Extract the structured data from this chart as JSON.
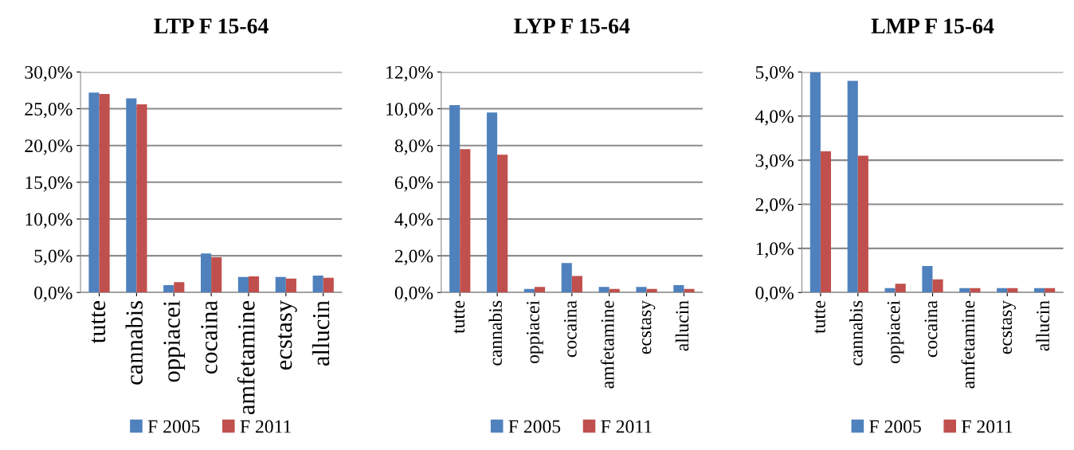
{
  "chart_data": [
    {
      "type": "bar",
      "title": "LTP F 15-64",
      "categories": [
        "tutte",
        "cannabis",
        "oppiacei",
        "cocaina",
        "amfetamine",
        "ecstasy",
        "allucin"
      ],
      "series": [
        {
          "name": "F 2005",
          "color": "#4f81bd",
          "values": [
            27.2,
            26.4,
            1.0,
            5.3,
            2.1,
            2.1,
            2.3
          ]
        },
        {
          "name": "F 2011",
          "color": "#c0504d",
          "values": [
            27.0,
            25.6,
            1.4,
            4.8,
            2.2,
            1.9,
            2.0
          ]
        }
      ],
      "ylim": [
        0,
        30
      ],
      "yticks": [
        {
          "value": 0,
          "label": "0,0%"
        },
        {
          "value": 5,
          "label": "5,0%"
        },
        {
          "value": 10,
          "label": "10,0%"
        },
        {
          "value": 15,
          "label": "15,0%"
        },
        {
          "value": 20,
          "label": "20,0%"
        },
        {
          "value": 25,
          "label": "25,0%"
        },
        {
          "value": 30,
          "label": "30,0%"
        }
      ],
      "grid": "y",
      "legend": "bottom"
    },
    {
      "type": "bar",
      "title": "LYP F 15-64",
      "categories": [
        "tutte",
        "cannabis",
        "oppiacei",
        "cocaina",
        "amfetamine",
        "ecstasy",
        "allucin"
      ],
      "series": [
        {
          "name": "F 2005",
          "color": "#4f81bd",
          "values": [
            10.2,
            9.8,
            0.2,
            1.6,
            0.3,
            0.3,
            0.4
          ]
        },
        {
          "name": "F 2011",
          "color": "#c0504d",
          "values": [
            7.8,
            7.5,
            0.3,
            0.9,
            0.2,
            0.2,
            0.2
          ]
        }
      ],
      "ylim": [
        0,
        12
      ],
      "yticks": [
        {
          "value": 0,
          "label": "0,0%"
        },
        {
          "value": 2,
          "label": "2,0%"
        },
        {
          "value": 4,
          "label": "4,0%"
        },
        {
          "value": 6,
          "label": "6,0%"
        },
        {
          "value": 8,
          "label": "8,0%"
        },
        {
          "value": 10,
          "label": "10,0%"
        },
        {
          "value": 12,
          "label": "12,0%"
        }
      ],
      "grid": "y",
      "legend": "bottom"
    },
    {
      "type": "bar",
      "title": "LMP F 15-64",
      "categories": [
        "tutte",
        "cannabis",
        "oppiacei",
        "cocaina",
        "amfetamine",
        "ecstasy",
        "allucin"
      ],
      "series": [
        {
          "name": "F 2005",
          "color": "#4f81bd",
          "values": [
            5.0,
            4.8,
            0.1,
            0.6,
            0.1,
            0.1,
            0.1
          ]
        },
        {
          "name": "F 2011",
          "color": "#c0504d",
          "values": [
            3.2,
            3.1,
            0.2,
            0.3,
            0.1,
            0.1,
            0.1
          ]
        }
      ],
      "ylim": [
        0,
        5
      ],
      "yticks": [
        {
          "value": 0,
          "label": "0,0%"
        },
        {
          "value": 1,
          "label": "1,0%"
        },
        {
          "value": 2,
          "label": "2,0%"
        },
        {
          "value": 3,
          "label": "3,0%"
        },
        {
          "value": 4,
          "label": "4,0%"
        },
        {
          "value": 5,
          "label": "5,0%"
        }
      ],
      "grid": "y",
      "legend": "bottom"
    }
  ]
}
